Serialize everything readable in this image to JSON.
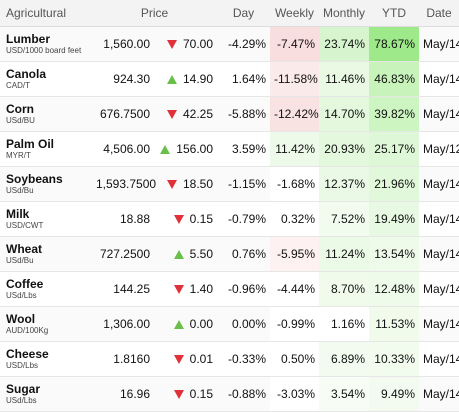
{
  "headers": {
    "name": "Agricultural",
    "price": "Price",
    "day": "Day",
    "weekly": "Weekly",
    "monthly": "Monthly",
    "ytd": "YTD",
    "date": "Date"
  },
  "colors": {
    "up_arrow": "#6abf4b",
    "down_arrow": "#e0313a"
  },
  "rows": [
    {
      "name": "Lumber",
      "unit": "USD/1000 board feet",
      "price": "1,560.00",
      "dir": "down",
      "change": "70.00",
      "day": "-4.29%",
      "weekly": "-7.47%",
      "monthly": "23.74%",
      "ytd": "78.67%",
      "date": "May/14",
      "bg": {
        "weekly": "#f8dede",
        "monthly": "#d6f5cf",
        "ytd": "#9ee98a"
      }
    },
    {
      "name": "Canola",
      "unit": "CAD/T",
      "price": "924.30",
      "dir": "up",
      "change": "14.90",
      "day": "1.64%",
      "weekly": "-11.58%",
      "monthly": "11.46%",
      "ytd": "46.83%",
      "date": "May/14",
      "bg": {
        "weekly": "#fbeaea",
        "monthly": "#e9f9e4",
        "ytd": "#c8f4bc"
      }
    },
    {
      "name": "Corn",
      "unit": "USd/BU",
      "price": "676.7500",
      "dir": "down",
      "change": "42.25",
      "day": "-5.88%",
      "weekly": "-12.42%",
      "monthly": "14.70%",
      "ytd": "39.82%",
      "date": "May/14",
      "bg": {
        "weekly": "#f8e2e2",
        "monthly": "#e3f8dd",
        "ytd": "#cdf5c2"
      }
    },
    {
      "name": "Palm Oil",
      "unit": "MYR/T",
      "price": "4,506.00",
      "dir": "up",
      "change": "156.00",
      "day": "3.59%",
      "weekly": "11.42%",
      "monthly": "20.93%",
      "ytd": "25.17%",
      "date": "May/12",
      "bg": {
        "weekly": "#edf9e9",
        "monthly": "#e4f8de",
        "ytd": "#def7d6"
      }
    },
    {
      "name": "Soybeans",
      "unit": "USd/Bu",
      "price": "1,593.7500",
      "dir": "down",
      "change": "18.50",
      "day": "-1.15%",
      "weekly": "-1.68%",
      "monthly": "12.37%",
      "ytd": "21.96%",
      "date": "May/14",
      "bg": {
        "weekly": "#ffffff",
        "monthly": "#eaf9e6",
        "ytd": "#e1f8da"
      }
    },
    {
      "name": "Milk",
      "unit": "USD/CWT",
      "price": "18.88",
      "dir": "down",
      "change": "0.15",
      "day": "-0.79%",
      "weekly": "0.32%",
      "monthly": "7.52%",
      "ytd": "19.49%",
      "date": "May/14",
      "bg": {
        "weekly": "#ffffff",
        "monthly": "#f1fbee",
        "ytd": "#e8f9e3"
      }
    },
    {
      "name": "Wheat",
      "unit": "USd/Bu",
      "price": "727.2500",
      "dir": "up",
      "change": "5.50",
      "day": "0.76%",
      "weekly": "-5.95%",
      "monthly": "11.24%",
      "ytd": "13.54%",
      "date": "May/14",
      "bg": {
        "weekly": "#fdf1f1",
        "monthly": "#ebf9e7",
        "ytd": "#eefaea"
      }
    },
    {
      "name": "Coffee",
      "unit": "USd/Lbs",
      "price": "144.25",
      "dir": "down",
      "change": "1.40",
      "day": "-0.96%",
      "weekly": "-4.44%",
      "monthly": "8.70%",
      "ytd": "12.48%",
      "date": "May/14",
      "bg": {
        "weekly": "#ffffff",
        "monthly": "#f0fbec",
        "ytd": "#eefaea"
      }
    },
    {
      "name": "Wool",
      "unit": "AUD/100Kg",
      "price": "1,306.00",
      "dir": "up",
      "change": "0.00",
      "day": "0.00%",
      "weekly": "-0.99%",
      "monthly": "1.16%",
      "ytd": "11.53%",
      "date": "May/14",
      "bg": {
        "weekly": "#ffffff",
        "monthly": "#ffffff",
        "ytd": "#f0fbec"
      }
    },
    {
      "name": "Cheese",
      "unit": "USD/Lbs",
      "price": "1.8160",
      "dir": "down",
      "change": "0.01",
      "day": "-0.33%",
      "weekly": "0.50%",
      "monthly": "6.89%",
      "ytd": "10.33%",
      "date": "May/14",
      "bg": {
        "weekly": "#ffffff",
        "monthly": "#f3fbf0",
        "ytd": "#f1fbee"
      }
    },
    {
      "name": "Sugar",
      "unit": "USd/Lbs",
      "price": "16.96",
      "dir": "down",
      "change": "0.15",
      "day": "-0.88%",
      "weekly": "-3.03%",
      "monthly": "3.54%",
      "ytd": "9.49%",
      "date": "May/14",
      "bg": {
        "weekly": "#ffffff",
        "monthly": "#f7fcf5",
        "ytd": "#f3fbf0"
      }
    }
  ]
}
